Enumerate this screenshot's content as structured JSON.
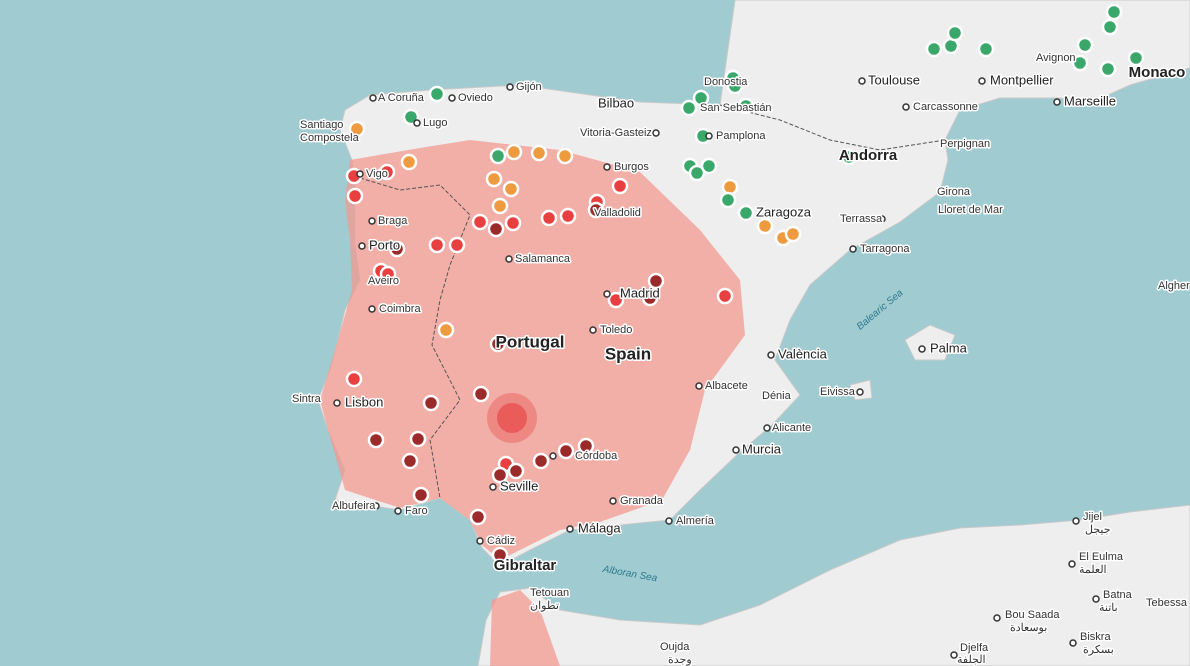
{
  "map": {
    "countries": [
      "Portugal",
      "Spain",
      "Andorra",
      "Monaco",
      "Gibraltar"
    ],
    "seas": [
      "Balearic Sea",
      "Alboran Sea"
    ],
    "places": [
      "A Coruña",
      "Oviedo",
      "Gijón",
      "Bilbao",
      "Santiago",
      "Compostela",
      "Lugo",
      "Vitoria-Gasteiz",
      "Pamplona",
      "Donostia",
      "San Sebastián",
      "Toulouse",
      "Montpellier",
      "Avignon",
      "Marseille",
      "Carcassonne",
      "Perpignan",
      "Burgos",
      "Vigo",
      "Braga",
      "Porto",
      "Valladolid",
      "Zaragoza",
      "Girona",
      "Lloret de Mar",
      "Terrassa",
      "Tarragona",
      "Salamanca",
      "Aveiro",
      "Coimbra",
      "Madrid",
      "Toledo",
      "València",
      "Palma",
      "Algher",
      "Sintra",
      "Lisbon",
      "Albacete",
      "Dénia",
      "Eivissa",
      "Alicante",
      "Murcia",
      "Seville",
      "Córdoba",
      "Granada",
      "Málaga",
      "Almería",
      "Albufeira",
      "Faro",
      "Cádiz",
      "Tetouan",
      "تطوان",
      "Oujda",
      "وجدة",
      "Jijel",
      "جيجل",
      "El Eulma",
      "العلمة",
      "Batna",
      "باتنة",
      "Tebessa",
      "Bou Saada",
      "بوسعادة",
      "Biskra",
      "بسكرة",
      "Djelfa",
      "الجلفة"
    ]
  }
}
